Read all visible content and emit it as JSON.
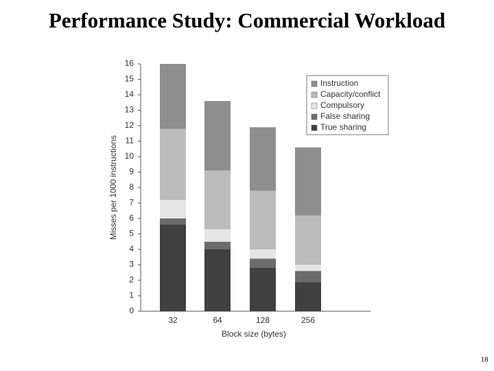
{
  "chart_data": {
    "type": "stacked_bar",
    "title": "Performance Study: Commercial Workload",
    "x_label": "Block size (bytes)",
    "y_label": "Misses per 1000 instructions",
    "categories": [
      "32",
      "64",
      "128",
      "256"
    ],
    "series": [
      {
        "name": "True sharing",
        "color": "#404040",
        "values": [
          5.6,
          4.0,
          2.8,
          1.9
        ]
      },
      {
        "name": "False sharing",
        "color": "#6c6c6c",
        "values": [
          0.4,
          0.5,
          0.6,
          0.7
        ]
      },
      {
        "name": "Compulsory",
        "color": "#e6e6e6",
        "values": [
          1.2,
          0.8,
          0.6,
          0.4
        ]
      },
      {
        "name": "Capacity/conflict",
        "color": "#bcbcbc",
        "values": [
          4.6,
          3.8,
          3.8,
          3.2
        ]
      },
      {
        "name": "Instruction",
        "color": "#8e8e8e",
        "values": [
          4.2,
          4.5,
          4.1,
          4.4
        ]
      }
    ],
    "ylim": [
      0,
      16
    ],
    "yticks": [
      0,
      1,
      2,
      3,
      4,
      5,
      6,
      7,
      8,
      9,
      10,
      11,
      12,
      13,
      14,
      15,
      16
    ],
    "grid": false,
    "legend": "upper right"
  },
  "page_number": "18"
}
